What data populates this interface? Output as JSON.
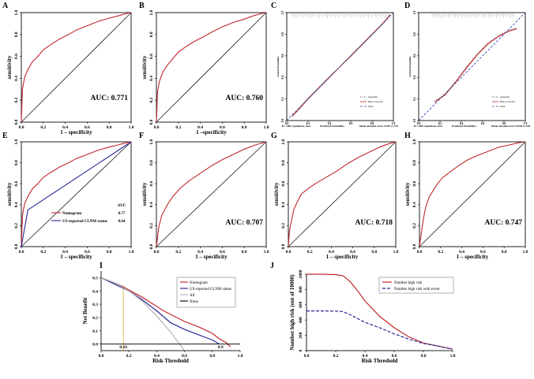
{
  "figure": {
    "panels": [
      "A",
      "B",
      "C",
      "D",
      "E",
      "F",
      "G",
      "H",
      "I",
      "J"
    ],
    "colors": {
      "curve": "#c0282d",
      "diagonal": "#1a1a1a",
      "ideal": "#2f4fa8",
      "us_line": "#27279a",
      "all_line": "#b4b4b4",
      "threshold": "#e2b343"
    }
  },
  "chart_data": [
    {
      "panel": "A",
      "type": "line",
      "xlabel": "1 – specificity",
      "ylabel": "sensitivity",
      "xlim": [
        0,
        1
      ],
      "ylim": [
        0,
        1
      ],
      "xticks": [
        "0.0",
        "0.2",
        "0.4",
        "0.6",
        "0.8",
        "1.0"
      ],
      "yticks": [
        "0.0",
        "0.2",
        "0.4",
        "0.6",
        "0.8",
        "1.0"
      ],
      "auc_label": "AUC: 0.771",
      "series": [
        {
          "name": "ROC",
          "x": [
            0,
            0.01,
            0.03,
            0.06,
            0.1,
            0.15,
            0.2,
            0.27,
            0.35,
            0.43,
            0.5,
            0.6,
            0.7,
            0.8,
            0.88,
            0.95,
            1
          ],
          "y": [
            0,
            0.3,
            0.41,
            0.48,
            0.55,
            0.6,
            0.66,
            0.71,
            0.76,
            0.8,
            0.84,
            0.88,
            0.92,
            0.95,
            0.97,
            0.99,
            1
          ]
        }
      ]
    },
    {
      "panel": "B",
      "type": "line",
      "xlabel": "1 –specificity",
      "ylabel": "sensitivity",
      "xlim": [
        0,
        1
      ],
      "ylim": [
        0,
        1
      ],
      "xticks": [
        "0.0",
        "0.2",
        "0.4",
        "0.6",
        "0.8",
        "1.0"
      ],
      "yticks": [
        "0.0",
        "0.2",
        "0.4",
        "0.6",
        "0.8",
        "1.0"
      ],
      "auc_label": "AUC: 0.760",
      "series": [
        {
          "name": "ROC",
          "x": [
            0,
            0.01,
            0.03,
            0.06,
            0.1,
            0.15,
            0.2,
            0.27,
            0.35,
            0.43,
            0.5,
            0.6,
            0.7,
            0.8,
            0.88,
            0.95,
            1
          ],
          "y": [
            0,
            0.28,
            0.38,
            0.46,
            0.52,
            0.58,
            0.64,
            0.69,
            0.74,
            0.78,
            0.82,
            0.87,
            0.91,
            0.94,
            0.97,
            0.99,
            1
          ]
        }
      ]
    },
    {
      "panel": "C",
      "type": "line",
      "xlabel": "Predicted Probability",
      "ylabel": "Actual Probability",
      "xlim": [
        0,
        1
      ],
      "ylim": [
        0,
        1
      ],
      "xticks": [
        "0.0",
        "0.2",
        "0.4",
        "0.6",
        "0.8",
        "1.0"
      ],
      "yticks": [
        "0.0",
        "0.2",
        "0.4",
        "0.6",
        "0.8",
        "1.0"
      ],
      "legend": [
        "Apparent",
        "Bias-corrected",
        "Ideal"
      ],
      "footnote_left": "B= 1000 repetitions, boot",
      "footnote_right": "Mean absolute error=0.007 n=749",
      "series": [
        {
          "name": "Apparent",
          "x": [
            0.05,
            0.1,
            0.2,
            0.3,
            0.4,
            0.5,
            0.6,
            0.7,
            0.8,
            0.9,
            0.97
          ],
          "y": [
            0.05,
            0.1,
            0.21,
            0.31,
            0.41,
            0.5,
            0.59,
            0.69,
            0.79,
            0.89,
            0.97
          ]
        },
        {
          "name": "Bias-corrected",
          "x": [
            0.05,
            0.1,
            0.2,
            0.3,
            0.4,
            0.5,
            0.6,
            0.7,
            0.8,
            0.9,
            0.97
          ],
          "y": [
            0.04,
            0.09,
            0.2,
            0.3,
            0.4,
            0.5,
            0.6,
            0.7,
            0.8,
            0.9,
            0.98
          ]
        },
        {
          "name": "Ideal",
          "x": [
            0,
            1
          ],
          "y": [
            0,
            1
          ]
        }
      ]
    },
    {
      "panel": "D",
      "type": "line",
      "xlabel": "Predicted Probability",
      "ylabel": "Actual Probability",
      "xlim": [
        0,
        1
      ],
      "ylim": [
        0,
        1
      ],
      "xticks": [
        "0.0",
        "0.2",
        "0.4",
        "0.6",
        "0.8",
        "1.0"
      ],
      "yticks": [
        "0.0",
        "0.2",
        "0.4",
        "0.6",
        "0.8",
        "1.0"
      ],
      "legend": [
        "Apparent",
        "Bias-corrected",
        "Ideal"
      ],
      "footnote_left": "B= 1000 repetitions, boot",
      "footnote_right": "Mean absolute error=0.038 n=328",
      "series": [
        {
          "name": "Apparent",
          "x": [
            0.15,
            0.25,
            0.35,
            0.45,
            0.55,
            0.65,
            0.75,
            0.85,
            0.92
          ],
          "y": [
            0.18,
            0.25,
            0.37,
            0.5,
            0.62,
            0.72,
            0.79,
            0.84,
            0.86
          ]
        },
        {
          "name": "Bias-corrected",
          "x": [
            0.15,
            0.25,
            0.35,
            0.45,
            0.55,
            0.65,
            0.75,
            0.85,
            0.92
          ],
          "y": [
            0.17,
            0.24,
            0.36,
            0.49,
            0.61,
            0.71,
            0.78,
            0.83,
            0.85
          ]
        },
        {
          "name": "Ideal",
          "x": [
            0,
            1
          ],
          "y": [
            0,
            1
          ]
        }
      ]
    },
    {
      "panel": "E",
      "type": "line",
      "xlabel": "1 – specificity",
      "ylabel": "sensitivity",
      "xlim": [
        0,
        1
      ],
      "ylim": [
        0,
        1
      ],
      "xticks": [
        "0.0",
        "0.2",
        "0.4",
        "0.6",
        "0.8",
        "1.0"
      ],
      "yticks": [
        "0.0",
        "0.2",
        "0.4",
        "0.6",
        "0.8",
        "1.0"
      ],
      "legend_header": "AUC",
      "legend": [
        {
          "name": "Nomogram",
          "value": "0.77"
        },
        {
          "name": "US-reported CLNM status",
          "value": "0.64"
        }
      ],
      "series": [
        {
          "name": "Nomogram",
          "x": [
            0,
            0.01,
            0.03,
            0.06,
            0.1,
            0.15,
            0.2,
            0.27,
            0.35,
            0.43,
            0.5,
            0.6,
            0.7,
            0.8,
            0.88,
            0.95,
            1
          ],
          "y": [
            0,
            0.3,
            0.41,
            0.48,
            0.55,
            0.6,
            0.66,
            0.71,
            0.76,
            0.8,
            0.84,
            0.88,
            0.92,
            0.95,
            0.97,
            0.99,
            1
          ]
        },
        {
          "name": "US-reported CLNM status",
          "x": [
            0,
            0.06,
            1
          ],
          "y": [
            0,
            0.35,
            1
          ]
        }
      ]
    },
    {
      "panel": "F",
      "type": "line",
      "xlabel": "1 – specificity",
      "ylabel": "sensitivity",
      "xlim": [
        0,
        1
      ],
      "ylim": [
        0,
        1
      ],
      "xticks": [
        "0.0",
        "0.2",
        "0.4",
        "0.6",
        "0.8",
        "1.0"
      ],
      "yticks": [
        "0.0",
        "0.2",
        "0.4",
        "0.6",
        "0.8",
        "1.0"
      ],
      "auc_label": "AUC: 0.707",
      "series": [
        {
          "name": "ROC",
          "x": [
            0,
            0.02,
            0.05,
            0.1,
            0.15,
            0.22,
            0.3,
            0.4,
            0.5,
            0.6,
            0.7,
            0.8,
            0.9,
            1
          ],
          "y": [
            0,
            0.18,
            0.3,
            0.4,
            0.48,
            0.56,
            0.63,
            0.7,
            0.77,
            0.83,
            0.88,
            0.93,
            0.97,
            1
          ]
        }
      ]
    },
    {
      "panel": "G",
      "type": "line",
      "xlabel": "1 – specificity",
      "ylabel": "sensitivity",
      "xlim": [
        0,
        1
      ],
      "ylim": [
        0,
        1
      ],
      "xticks": [
        "0.0",
        "0.2",
        "0.4",
        "0.6",
        "0.8",
        "1.0"
      ],
      "yticks": [
        "0.0",
        "0.2",
        "0.4",
        "0.6",
        "0.8",
        "1.0"
      ],
      "auc_label": "AUC: 0.718",
      "series": [
        {
          "name": "ROC",
          "x": [
            0,
            0.01,
            0.03,
            0.05,
            0.08,
            0.12,
            0.18,
            0.25,
            0.35,
            0.45,
            0.55,
            0.65,
            0.75,
            0.85,
            0.93,
            1
          ],
          "y": [
            0,
            0.15,
            0.25,
            0.35,
            0.42,
            0.5,
            0.55,
            0.6,
            0.66,
            0.72,
            0.79,
            0.85,
            0.9,
            0.95,
            0.98,
            1
          ]
        }
      ]
    },
    {
      "panel": "H",
      "type": "line",
      "xlabel": "1 – specificity",
      "ylabel": "sensitivity",
      "xlim": [
        0,
        1
      ],
      "ylim": [
        0,
        1
      ],
      "xticks": [
        "0.0",
        "0.2",
        "0.4",
        "0.6",
        "0.8",
        "1.0"
      ],
      "yticks": [
        "0.0",
        "0.2",
        "0.4",
        "0.6",
        "0.8",
        "1.0"
      ],
      "auc_label": "AUC: 0.747",
      "series": [
        {
          "name": "ROC",
          "x": [
            0,
            0.02,
            0.04,
            0.06,
            0.09,
            0.12,
            0.17,
            0.22,
            0.3,
            0.38,
            0.46,
            0.55,
            0.65,
            0.75,
            0.85,
            0.93,
            1
          ],
          "y": [
            0,
            0.15,
            0.28,
            0.38,
            0.47,
            0.52,
            0.6,
            0.66,
            0.72,
            0.78,
            0.83,
            0.87,
            0.91,
            0.95,
            0.97,
            0.99,
            1
          ]
        }
      ]
    },
    {
      "panel": "I",
      "type": "line",
      "xlabel": "Risk Threshold",
      "ylabel": "Net Benefit",
      "xlim": [
        0,
        1
      ],
      "ylim": [
        -0.05,
        0.55
      ],
      "xticks": [
        "0.0",
        "0.2",
        "0.4",
        "0.6",
        "0.8",
        "1.0"
      ],
      "yticks": [
        "0.0",
        "0.1",
        "0.2",
        "0.3",
        "0.4",
        "0.5"
      ],
      "legend": [
        "Nomogram",
        "US-reported CLNM status",
        "All",
        "None"
      ],
      "annotations": [
        "0.16",
        "0.9"
      ],
      "series": [
        {
          "name": "Nomogram",
          "x": [
            0,
            0.1,
            0.16,
            0.3,
            0.45,
            0.6,
            0.7,
            0.8,
            0.85,
            0.9,
            0.93
          ],
          "y": [
            0.5,
            0.46,
            0.43,
            0.35,
            0.25,
            0.17,
            0.13,
            0.08,
            0.04,
            0.01,
            -0.02
          ]
        },
        {
          "name": "US-reported CLNM status",
          "x": [
            0,
            0.1,
            0.2,
            0.3,
            0.4,
            0.5,
            0.6,
            0.7,
            0.8,
            0.85
          ],
          "y": [
            0.5,
            0.45,
            0.4,
            0.33,
            0.25,
            0.16,
            0.11,
            0.07,
            0.03,
            0
          ]
        },
        {
          "name": "All",
          "x": [
            0,
            0.1,
            0.2,
            0.3,
            0.4,
            0.5,
            0.55,
            0.6
          ],
          "y": [
            0.5,
            0.46,
            0.4,
            0.32,
            0.21,
            0.09,
            0.02,
            -0.05
          ]
        },
        {
          "name": "None",
          "x": [
            0,
            1
          ],
          "y": [
            0,
            0
          ]
        }
      ]
    },
    {
      "panel": "J",
      "type": "line",
      "xlabel": "Risk Threshold",
      "ylabel": "Number high risk (out of 10000)",
      "xlim": [
        0,
        1
      ],
      "ylim": [
        0,
        1000
      ],
      "xticks": [
        "0.0",
        "0.2",
        "0.4",
        "0.6",
        "0.8",
        "1.0"
      ],
      "yticks": [
        "0",
        "200",
        "400",
        "600",
        "800",
        "1000"
      ],
      "legend": [
        "Number high risk",
        "Number high risk with event"
      ],
      "series": [
        {
          "name": "Number high risk",
          "x": [
            0,
            0.1,
            0.2,
            0.25,
            0.3,
            0.35,
            0.4,
            0.5,
            0.6,
            0.7,
            0.8,
            0.9,
            1
          ],
          "y": [
            1000,
            1000,
            995,
            980,
            900,
            780,
            650,
            450,
            300,
            180,
            100,
            60,
            20
          ]
        },
        {
          "name": "Number high risk with event",
          "x": [
            0,
            0.1,
            0.2,
            0.25,
            0.3,
            0.35,
            0.4,
            0.5,
            0.6,
            0.7,
            0.8,
            0.9,
            1
          ],
          "y": [
            520,
            520,
            518,
            510,
            470,
            420,
            370,
            300,
            220,
            150,
            95,
            60,
            20
          ]
        }
      ]
    }
  ]
}
